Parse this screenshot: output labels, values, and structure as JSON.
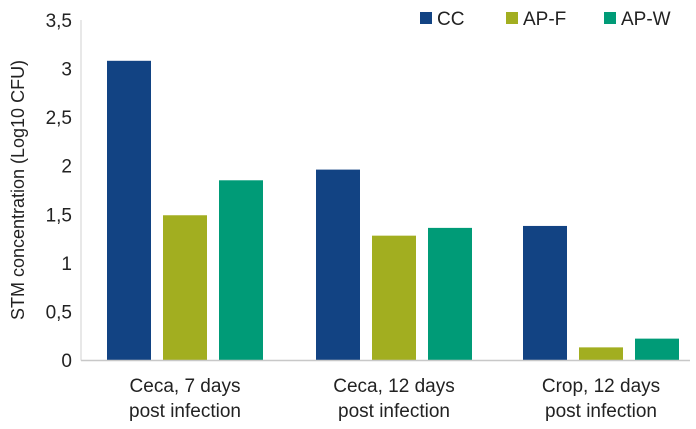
{
  "chart_data": {
    "type": "bar",
    "title": "",
    "xlabel": "",
    "ylabel": "STM concentration (Log10 CFU)",
    "ylim": [
      0,
      3.5
    ],
    "yticks": [
      0,
      0.5,
      1,
      1.5,
      2,
      2.5,
      3,
      3.5
    ],
    "ytick_labels": [
      "0",
      "0,5",
      "1",
      "1,5",
      "2",
      "2,5",
      "3",
      "3,5"
    ],
    "grid": false,
    "legend_position": "top-right",
    "categories": [
      [
        "Ceca, 7 days",
        "post infection"
      ],
      [
        "Ceca, 12 days",
        "post infection"
      ],
      [
        "Crop, 12 days",
        "post infection"
      ]
    ],
    "series": [
      {
        "name": "CC",
        "color": "#124383",
        "values": [
          3.08,
          1.96,
          1.38
        ]
      },
      {
        "name": "AP-F",
        "color": "#a2ae20",
        "values": [
          1.49,
          1.28,
          0.13
        ]
      },
      {
        "name": "AP-W",
        "color": "#009b77",
        "values": [
          1.85,
          1.36,
          0.22
        ]
      }
    ]
  }
}
